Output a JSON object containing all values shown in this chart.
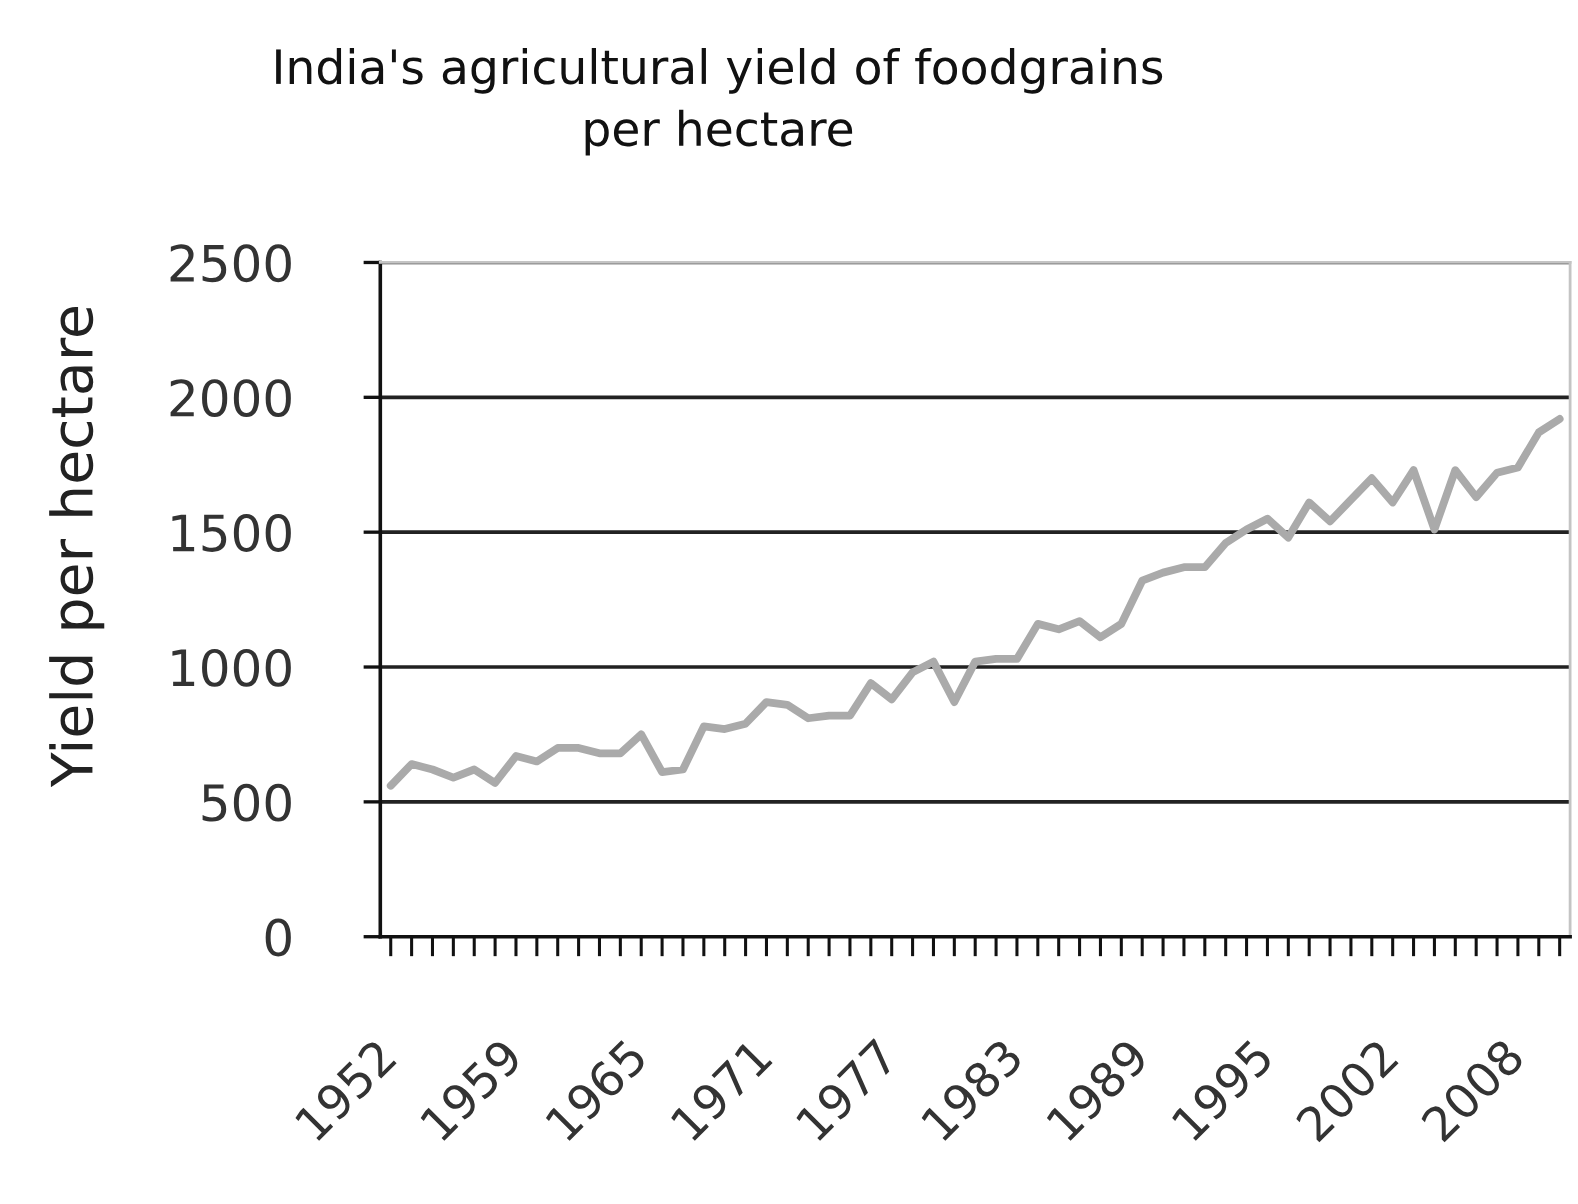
{
  "chart_data": {
    "type": "line",
    "title": "India's agricultural yield of foodgrains\nper hectare",
    "ylabel": "Yield per hectare",
    "categories": [
      "1952",
      null,
      null,
      null,
      null,
      null,
      "1959",
      null,
      null,
      null,
      null,
      null,
      "1965",
      null,
      null,
      null,
      null,
      null,
      "1971",
      null,
      null,
      null,
      null,
      null,
      "1977",
      null,
      null,
      null,
      null,
      null,
      "1983",
      null,
      null,
      null,
      null,
      null,
      "1989",
      null,
      null,
      null,
      null,
      null,
      "1995",
      null,
      null,
      null,
      null,
      null,
      "2002",
      null,
      null,
      null,
      null,
      null,
      "2008",
      null,
      null
    ],
    "series": [
      {
        "color": "#aaaaaa",
        "values": [
          560,
          640,
          620,
          590,
          620,
          570,
          670,
          650,
          700,
          700,
          680,
          680,
          750,
          610,
          620,
          780,
          770,
          790,
          870,
          860,
          810,
          820,
          820,
          940,
          880,
          980,
          1020,
          870,
          1020,
          1030,
          1030,
          1160,
          1140,
          1170,
          1110,
          1160,
          1320,
          1350,
          1370,
          1370,
          1460,
          1510,
          1550,
          1480,
          1610,
          1540,
          1620,
          1700,
          1610,
          1730,
          1510,
          1730,
          1630,
          1720,
          1740,
          1870,
          1920
        ]
      }
    ],
    "ylim": [
      0,
      2500
    ],
    "yticks": [
      0,
      500,
      1000,
      1500,
      2000,
      2500
    ],
    "grid": "y"
  }
}
